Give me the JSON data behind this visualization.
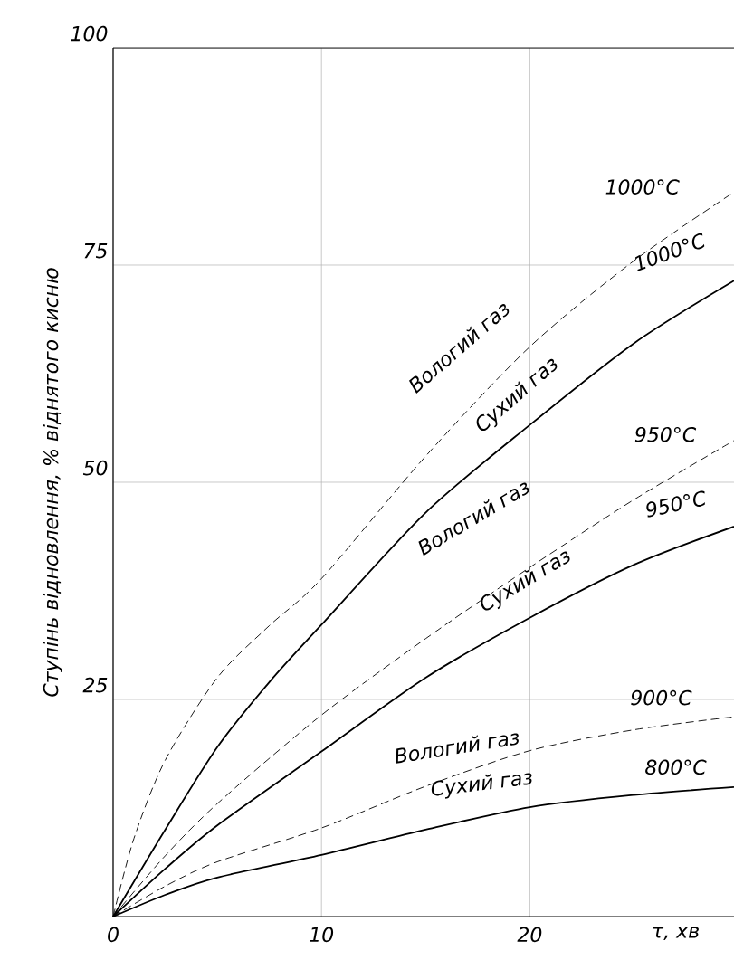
{
  "chart_data": {
    "type": "line",
    "xlabel": "τ, хв",
    "ylabel": "Ступінь відновлення, % віднятого кисню",
    "xlim": [
      0,
      29.8
    ],
    "ylim": [
      0,
      100
    ],
    "xticks": [
      0,
      10,
      20
    ],
    "yticks": [
      25,
      50,
      75,
      100
    ],
    "grid": true,
    "marker": "none",
    "series": [
      {
        "color": "#000000",
        "line_style": "dashed",
        "x": [
          0,
          1,
          2.5,
          5,
          7.5,
          10,
          15,
          20,
          25,
          29.8
        ],
        "values": [
          0,
          9,
          18,
          27.5,
          33.5,
          38.9,
          53,
          65.6,
          75.5,
          83.4
        ]
      },
      {
        "color": "#000000",
        "line_style": "solid",
        "x": [
          0,
          2.5,
          5,
          7.5,
          10,
          15,
          20,
          25,
          29.8
        ],
        "values": [
          0,
          10,
          19.5,
          27,
          33.6,
          46.5,
          56.6,
          66,
          73.2
        ]
      },
      {
        "color": "#000000",
        "line_style": "dashed",
        "x": [
          0,
          2.5,
          5,
          10,
          15,
          20,
          25,
          29.8
        ],
        "values": [
          0,
          7,
          13,
          23.2,
          32,
          40.2,
          48,
          54.8
        ]
      },
      {
        "color": "#000000",
        "line_style": "solid",
        "x": [
          0,
          2.5,
          5,
          10,
          15,
          20,
          25,
          29.8
        ],
        "values": [
          0,
          5.5,
          10.5,
          19,
          27.5,
          34.4,
          40.5,
          44.9
        ]
      },
      {
        "color": "#000000",
        "line_style": "dashed",
        "x": [
          0,
          2.5,
          5,
          10,
          15,
          20,
          25,
          29.8
        ],
        "values": [
          0,
          3.5,
          6.3,
          10.2,
          15,
          19.1,
          21.5,
          23
        ]
      },
      {
        "color": "#000000",
        "line_style": "solid",
        "x": [
          0,
          2.5,
          5,
          10,
          15,
          20,
          25,
          29.8
        ],
        "values": [
          0,
          2.5,
          4.5,
          7.1,
          10,
          12.6,
          14,
          14.9
        ]
      }
    ],
    "annotations": [
      "1000°C",
      "Вологий газ",
      "Сухий газ",
      "1000°C",
      "950°C",
      "Вологий газ",
      "Сухий газ",
      "950°C",
      "900°C",
      "Вологий газ",
      "Сухий газ",
      "800°C"
    ]
  }
}
